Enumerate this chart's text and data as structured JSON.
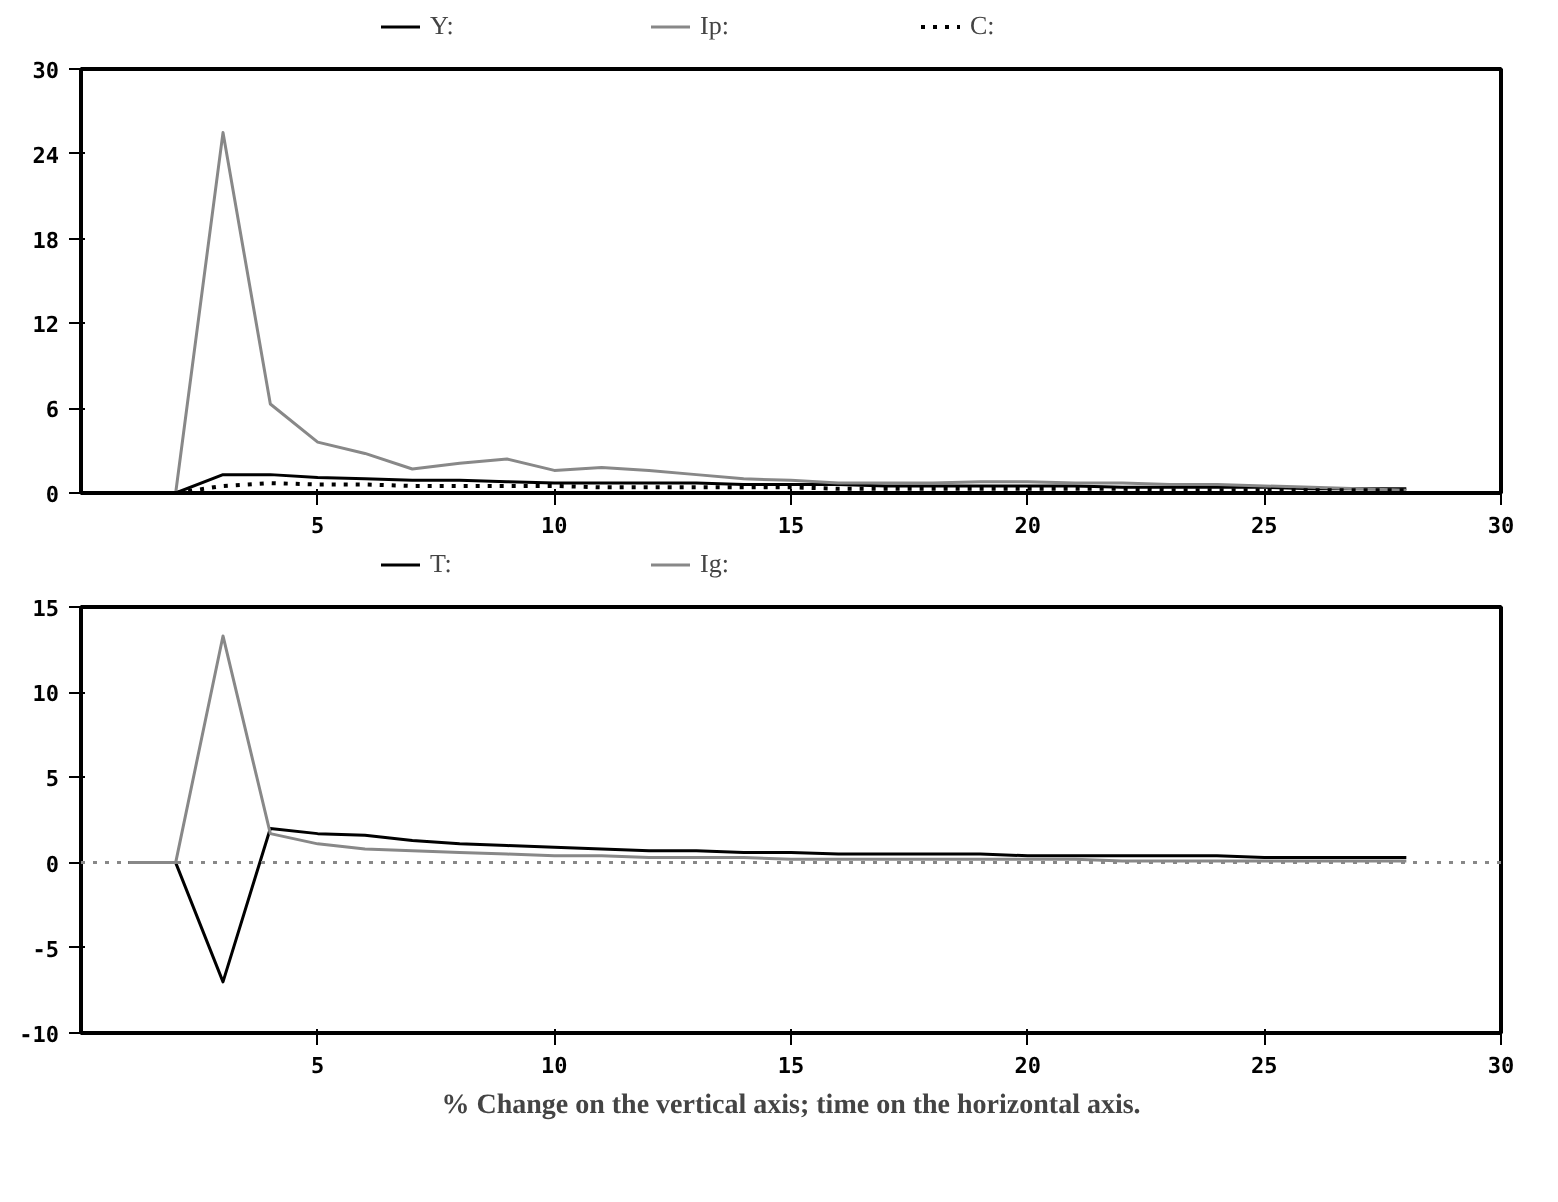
{
  "chart_data": [
    {
      "type": "line",
      "x": [
        1,
        2,
        3,
        4,
        5,
        6,
        7,
        8,
        9,
        10,
        11,
        12,
        13,
        14,
        15,
        16,
        17,
        18,
        19,
        20,
        21,
        22,
        23,
        24,
        25,
        26,
        27,
        28
      ],
      "xlim": [
        0,
        30
      ],
      "xticks": [
        5,
        10,
        15,
        20,
        25,
        30
      ],
      "ylim": [
        0,
        30
      ],
      "yticks": [
        0,
        6,
        12,
        18,
        24,
        30
      ],
      "grid": false,
      "legend": "top",
      "series": [
        {
          "name": "Y:",
          "color": "#000000",
          "line_style": "solid",
          "values": [
            0,
            0,
            1.3,
            1.3,
            1.1,
            1.0,
            0.9,
            0.9,
            0.8,
            0.7,
            0.7,
            0.7,
            0.7,
            0.6,
            0.6,
            0.6,
            0.5,
            0.5,
            0.5,
            0.5,
            0.5,
            0.4,
            0.4,
            0.4,
            0.4,
            0.3,
            0.3,
            0.3
          ]
        },
        {
          "name": "Ip:",
          "color": "#888888",
          "line_style": "solid",
          "values": [
            0,
            0,
            25.5,
            6.3,
            3.6,
            2.8,
            1.7,
            2.1,
            2.4,
            1.6,
            1.8,
            1.6,
            1.3,
            1.0,
            0.9,
            0.7,
            0.7,
            0.7,
            0.8,
            0.8,
            0.7,
            0.7,
            0.6,
            0.6,
            0.5,
            0.4,
            0.3,
            0.2
          ]
        },
        {
          "name": "C:",
          "color": "#000000",
          "line_style": "dotted",
          "values": [
            0,
            0,
            0.5,
            0.7,
            0.6,
            0.6,
            0.5,
            0.5,
            0.5,
            0.5,
            0.4,
            0.4,
            0.4,
            0.4,
            0.4,
            0.3,
            0.3,
            0.3,
            0.3,
            0.3,
            0.3,
            0.3,
            0.2,
            0.2,
            0.2,
            0.2,
            0.2,
            0.2
          ]
        }
      ]
    },
    {
      "type": "line",
      "x": [
        1,
        2,
        3,
        4,
        5,
        6,
        7,
        8,
        9,
        10,
        11,
        12,
        13,
        14,
        15,
        16,
        17,
        18,
        19,
        20,
        21,
        22,
        23,
        24,
        25,
        26,
        27,
        28
      ],
      "xlim": [
        0,
        30
      ],
      "xticks": [
        5,
        10,
        15,
        20,
        25,
        30
      ],
      "ylim": [
        -10,
        15
      ],
      "yticks": [
        -10,
        -5,
        0,
        5,
        10,
        15
      ],
      "grid": false,
      "legend": "top",
      "ref_lines": [
        {
          "axis": "y",
          "value": 0,
          "color": "#888888",
          "line_style": "dotted"
        }
      ],
      "annotations": [
        "% Change on the vertical axis; time on the horizontal axis."
      ],
      "series": [
        {
          "name": "T:",
          "color": "#000000",
          "line_style": "solid",
          "values": [
            0,
            0,
            -7,
            2.0,
            1.7,
            1.6,
            1.3,
            1.1,
            1.0,
            0.9,
            0.8,
            0.7,
            0.7,
            0.6,
            0.6,
            0.5,
            0.5,
            0.5,
            0.5,
            0.4,
            0.4,
            0.4,
            0.4,
            0.4,
            0.3,
            0.3,
            0.3,
            0.3
          ]
        },
        {
          "name": "Ig:",
          "color": "#888888",
          "line_style": "solid",
          "values": [
            0,
            0,
            13.3,
            1.7,
            1.1,
            0.8,
            0.7,
            0.6,
            0.5,
            0.4,
            0.4,
            0.3,
            0.3,
            0.3,
            0.2,
            0.2,
            0.2,
            0.2,
            0.2,
            0.2,
            0.2,
            0.1,
            0.1,
            0.1,
            0.1,
            0.1,
            0.1,
            0.1
          ]
        }
      ]
    }
  ]
}
